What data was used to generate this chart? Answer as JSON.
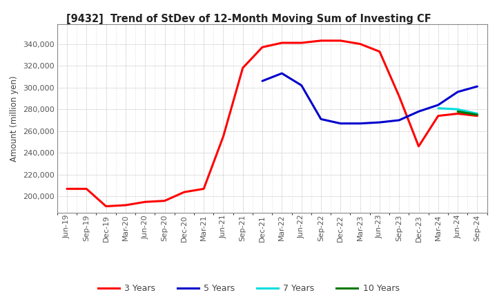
{
  "title": "[9432]  Trend of StDev of 12-Month Moving Sum of Investing CF",
  "ylabel": "Amount (million yen)",
  "background_color": "#ffffff",
  "grid_color": "#999999",
  "ylim": [
    185000,
    358000
  ],
  "yticks": [
    200000,
    220000,
    240000,
    260000,
    280000,
    300000,
    320000,
    340000
  ],
  "series": {
    "3yr": {
      "color": "#ff0000",
      "label": "3 Years",
      "x": [
        "Jun-19",
        "Sep-19",
        "Dec-19",
        "Mar-20",
        "Jun-20",
        "Sep-20",
        "Dec-20",
        "Mar-21",
        "Jun-21",
        "Sep-21",
        "Dec-21",
        "Mar-22",
        "Jun-22",
        "Sep-22",
        "Dec-22",
        "Mar-23",
        "Jun-23",
        "Sep-23",
        "Dec-23",
        "Mar-24",
        "Jun-24",
        "Sep-24"
      ],
      "y": [
        207000,
        207000,
        191000,
        192000,
        195000,
        196000,
        204000,
        207000,
        255000,
        318000,
        337000,
        341000,
        341000,
        343000,
        343000,
        340000,
        333000,
        292000,
        246000,
        274000,
        276000,
        274000
      ]
    },
    "5yr": {
      "color": "#0000cc",
      "label": "5 Years",
      "x": [
        "Dec-21",
        "Mar-22",
        "Jun-22",
        "Sep-22",
        "Dec-22",
        "Mar-23",
        "Jun-23",
        "Sep-23",
        "Dec-23",
        "Mar-24",
        "Jun-24",
        "Sep-24"
      ],
      "y": [
        306000,
        313000,
        302000,
        271000,
        267000,
        267000,
        268000,
        270000,
        278000,
        284000,
        296000,
        301000
      ]
    },
    "7yr": {
      "color": "#00dddd",
      "label": "7 Years",
      "x": [
        "Mar-24",
        "Jun-24",
        "Sep-24"
      ],
      "y": [
        281000,
        280000,
        276000
      ]
    },
    "10yr": {
      "color": "#007700",
      "label": "10 Years",
      "x": [
        "Jun-24",
        "Sep-24"
      ],
      "y": [
        278000,
        275000
      ]
    }
  },
  "x_tick_labels": [
    "Jun-19",
    "Sep-19",
    "Dec-19",
    "Mar-20",
    "Jun-20",
    "Sep-20",
    "Dec-20",
    "Mar-21",
    "Jun-21",
    "Sep-21",
    "Dec-21",
    "Mar-22",
    "Jun-22",
    "Sep-22",
    "Dec-22",
    "Mar-23",
    "Jun-23",
    "Sep-23",
    "Dec-23",
    "Mar-24",
    "Jun-24",
    "Sep-24"
  ]
}
